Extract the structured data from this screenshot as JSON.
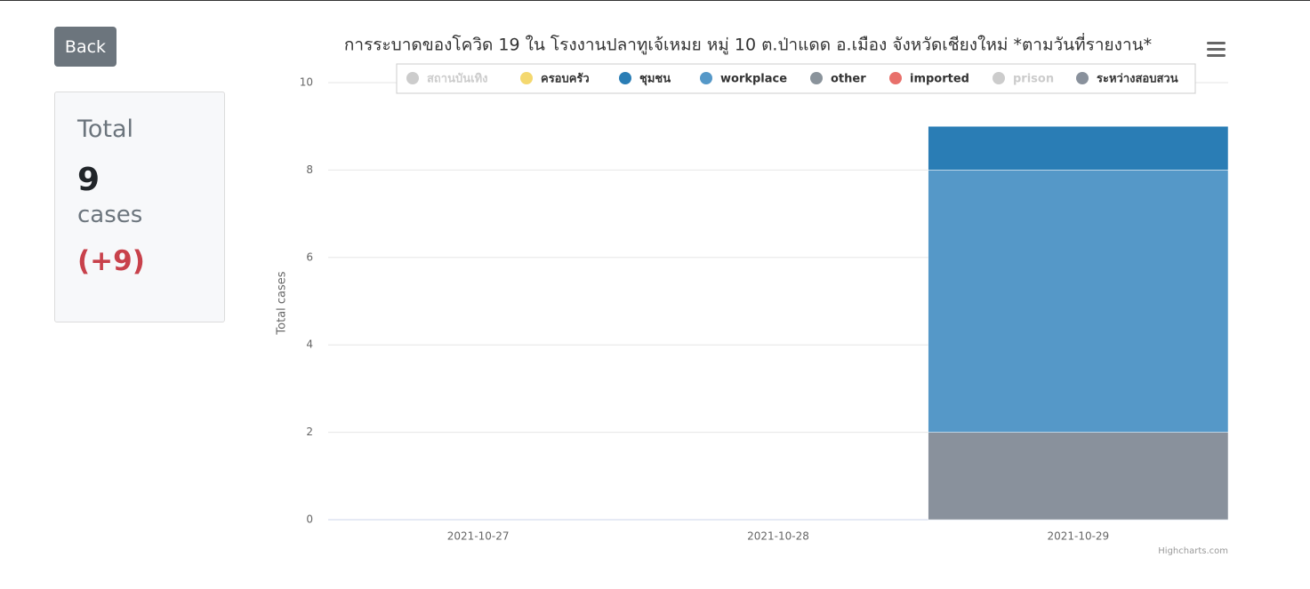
{
  "sidebar": {
    "button": "Back",
    "title": "Total",
    "count": "9",
    "unit": "cases",
    "change": "(+9)"
  },
  "chart_data": {
    "type": "stacked-bar",
    "title": "การระบาดของโควิด 19 ใน โรงงานปลาทูเจ้เหมย หมู่ 10 ต.ป่าแดด อ.เมือง จังหวัดเชียงใหม่ *ตามวันที่รายงาน*",
    "y_label": "Total cases",
    "credits": "Highcharts.com",
    "categories": [
      "2021-10-27",
      "2021-10-28",
      "2021-10-29"
    ],
    "ylim": [
      0,
      10
    ],
    "yticks": [
      0,
      2,
      4,
      6,
      8,
      10
    ],
    "grid": true,
    "series": [
      {
        "name": "สถานบันเทิง",
        "visible": false,
        "values": [
          0,
          0,
          0
        ]
      },
      {
        "name": "ครอบครัว",
        "color": "#f4d86f",
        "values": [
          0,
          0,
          0
        ]
      },
      {
        "name": "ชุมชน",
        "color": "#2a7db5",
        "values": [
          0,
          0,
          1
        ]
      },
      {
        "name": "workplace",
        "color": "#5598c8",
        "values": [
          0,
          0,
          6
        ]
      },
      {
        "name": "other",
        "color": "#8a939b",
        "values": [
          0,
          0,
          0
        ]
      },
      {
        "name": "imported",
        "color": "#e8706b",
        "values": [
          0,
          0,
          0
        ]
      },
      {
        "name": "prison",
        "visible": false,
        "values": [
          0,
          0,
          0
        ]
      },
      {
        "name": "ระหว่างสอบสวน",
        "color": "#89919c",
        "values": [
          0,
          0,
          2
        ]
      }
    ]
  }
}
